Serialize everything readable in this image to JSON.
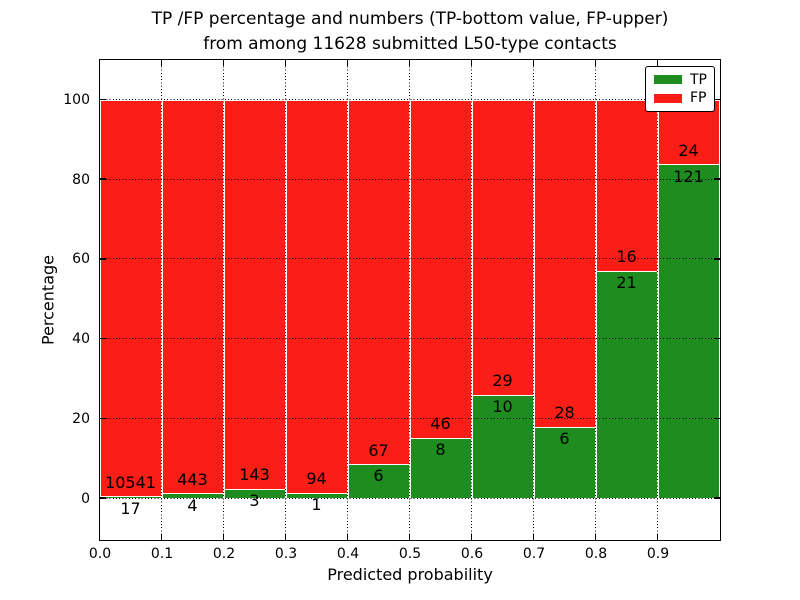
{
  "title": {
    "line1": "TP /FP percentage and numbers (TP-bottom value, FP-upper)",
    "line2": "from among 11628 submitted L50-type contacts"
  },
  "x_axis": {
    "label": "Predicted probability",
    "tick_labels": [
      "0.0",
      "0.1",
      "0.2",
      "0.3",
      "0.4",
      "0.5",
      "0.6",
      "0.7",
      "0.8",
      "0.9"
    ]
  },
  "y_axis": {
    "label": "Percentage",
    "tick_labels": [
      "0",
      "20",
      "40",
      "60",
      "80",
      "100"
    ],
    "tick_values": [
      0,
      20,
      40,
      60,
      80,
      100
    ]
  },
  "legend": {
    "items": [
      {
        "label": "TP",
        "color": "#1e8c1e"
      },
      {
        "label": "FP",
        "color": "#fa1e16"
      }
    ]
  },
  "chart_data": {
    "type": "bar",
    "stacked": true,
    "title": "TP /FP percentage and numbers (TP-bottom value, FP-upper) from among 11628 submitted L50-type contacts",
    "xlabel": "Predicted probability",
    "ylabel": "Percentage",
    "xlim": [
      0.0,
      1.0
    ],
    "ylim": [
      -10.5,
      110
    ],
    "grid": true,
    "legend_position": "upper right",
    "bin_width": 0.1,
    "note": "Each bin stacked to 100%; green TP share on bottom, red FP share on top; labels are raw counts (TP below boundary, FP above boundary)",
    "bins": [
      {
        "x0": 0.0,
        "x1": 0.1,
        "tp": 17,
        "fp": 10541
      },
      {
        "x0": 0.1,
        "x1": 0.2,
        "tp": 4,
        "fp": 443
      },
      {
        "x0": 0.2,
        "x1": 0.3,
        "tp": 3,
        "fp": 143
      },
      {
        "x0": 0.3,
        "x1": 0.4,
        "tp": 1,
        "fp": 94
      },
      {
        "x0": 0.4,
        "x1": 0.5,
        "tp": 6,
        "fp": 67
      },
      {
        "x0": 0.5,
        "x1": 0.6,
        "tp": 8,
        "fp": 46
      },
      {
        "x0": 0.6,
        "x1": 0.7,
        "tp": 10,
        "fp": 29
      },
      {
        "x0": 0.7,
        "x1": 0.8,
        "tp": 6,
        "fp": 28
      },
      {
        "x0": 0.8,
        "x1": 0.9,
        "tp": 21,
        "fp": 16
      },
      {
        "x0": 0.9,
        "x1": 1.0,
        "tp": 121,
        "fp": 24
      }
    ],
    "colors": {
      "TP": "#1e8c1e",
      "FP": "#fa1e16"
    }
  }
}
